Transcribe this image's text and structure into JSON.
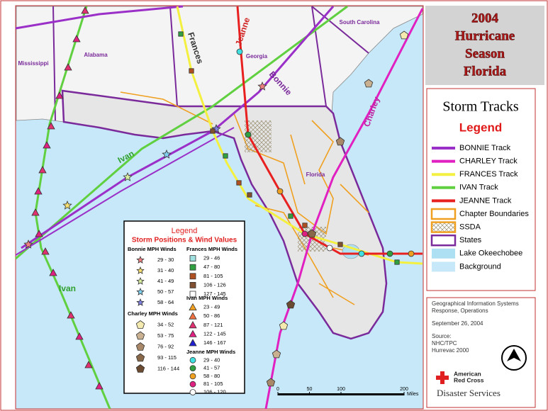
{
  "title": {
    "lines": [
      "2004",
      "Hurricane",
      "Season",
      "Florida"
    ]
  },
  "legend": {
    "heading": "Storm Tracks",
    "subheading": "Legend",
    "items": [
      {
        "label": "BONNIE Track",
        "kind": "line",
        "color": "#9b30c8"
      },
      {
        "label": "CHARLEY Track",
        "kind": "line",
        "color": "#e020c0"
      },
      {
        "label": "FRANCES Track",
        "kind": "line",
        "color": "#f4f040"
      },
      {
        "label": "IVAN Track",
        "kind": "line",
        "color": "#60d040"
      },
      {
        "label": "JEANNE Track",
        "kind": "line",
        "color": "#e82020"
      },
      {
        "label": "Chapter Boundaries",
        "kind": "box",
        "color": "#f0a020"
      },
      {
        "label": "SSDA",
        "kind": "hatch",
        "color": "#f0a020"
      },
      {
        "label": "States",
        "kind": "box",
        "color": "#7a2a9a"
      },
      {
        "label": "Lake Okeechobee",
        "kind": "fill",
        "color": "#aee0f4"
      },
      {
        "label": "Background",
        "kind": "fill",
        "color": "#c6e8f8"
      }
    ]
  },
  "map_labels": {
    "states": [
      "Mississippi",
      "Alabama",
      "Georgia",
      "South Carolina",
      "Florida"
    ],
    "storms": [
      "Frances",
      "Jeanne",
      "Bonnie",
      "Charley",
      "Ivan",
      "Ivan"
    ]
  },
  "wind_legend": {
    "title": "Legend",
    "subtitle": "Storm Positions & Wind Values",
    "groups": [
      {
        "name": "Bonnie MPH Winds",
        "shape": "star",
        "entries": [
          {
            "range": "29 - 30",
            "color": "#f08080"
          },
          {
            "range": "31 - 40",
            "color": "#f8e070"
          },
          {
            "range": "41 - 49",
            "color": "#d8f0a0"
          },
          {
            "range": "50 - 57",
            "color": "#80d0f0"
          },
          {
            "range": "58 - 64",
            "color": "#8080e0"
          }
        ]
      },
      {
        "name": "Charley MPH Winds",
        "shape": "pentagon",
        "entries": [
          {
            "range": "34 - 52",
            "color": "#f4eab0"
          },
          {
            "range": "53 - 75",
            "color": "#c8b090"
          },
          {
            "range": "76 - 92",
            "color": "#a88868"
          },
          {
            "range": "93 - 115",
            "color": "#886848"
          },
          {
            "range": "116 - 144",
            "color": "#6a4a30"
          }
        ]
      },
      {
        "name": "Frances MPH Winds",
        "shape": "square",
        "entries": [
          {
            "range": "29 - 46",
            "color": "#a0e0e0"
          },
          {
            "range": "47 - 80",
            "color": "#30a040"
          },
          {
            "range": "81 - 105",
            "color": "#b05020"
          },
          {
            "range": "106 - 126",
            "color": "#805030"
          },
          {
            "range": "127 - 145",
            "color": "#ffffff"
          }
        ]
      },
      {
        "name": "Ivan MPH Winds",
        "shape": "triangle",
        "entries": [
          {
            "range": "23 - 49",
            "color": "#f0a020"
          },
          {
            "range": "50 - 86",
            "color": "#f07040"
          },
          {
            "range": "87 - 121",
            "color": "#e03070"
          },
          {
            "range": "122 - 145",
            "color": "#e02080"
          },
          {
            "range": "146 - 167",
            "color": "#2020d0"
          }
        ]
      },
      {
        "name": "Jeanne MPH Winds",
        "shape": "circle",
        "entries": [
          {
            "range": "29 - 40",
            "color": "#40e0e0"
          },
          {
            "range": "41 - 57",
            "color": "#30a040"
          },
          {
            "range": "58 - 80",
            "color": "#f0a020"
          },
          {
            "range": "81 - 105",
            "color": "#e02080"
          },
          {
            "range": "106 - 120",
            "color": "#ffffff"
          }
        ]
      }
    ]
  },
  "info": {
    "lines": [
      "Geographical Information Systems",
      "Response, Operations",
      "September 26, 2004",
      "Source:",
      "NHC/TPC",
      "Hurrevac 2000"
    ]
  },
  "scale": {
    "ticks": [
      0,
      50,
      100,
      200
    ],
    "unit": "Miles"
  },
  "logo": {
    "name_lines": [
      "American",
      "Red Cross"
    ],
    "division": "Disaster Services"
  }
}
